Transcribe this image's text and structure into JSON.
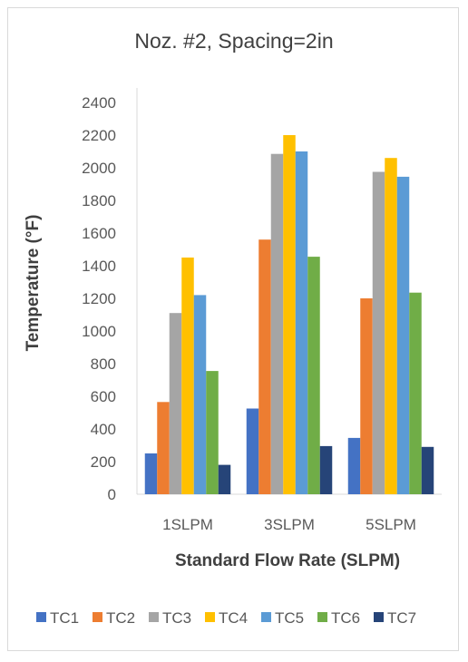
{
  "chart_data": {
    "type": "bar",
    "title": "Noz. #2, Spacing=2in",
    "xlabel": "Standard Flow Rate (SLPM)",
    "ylabel": "Temperature (°F)",
    "ylim": [
      0,
      2400
    ],
    "yticks": [
      0,
      200,
      400,
      600,
      800,
      1000,
      1200,
      1400,
      1600,
      1800,
      2000,
      2200,
      2400
    ],
    "categories": [
      "1SLPM",
      "3SLPM",
      "5SLPM"
    ],
    "grid": false,
    "legend_position": "bottom",
    "series": [
      {
        "name": "TC1",
        "color": "#4472C4",
        "values": [
          250,
          525,
          345
        ]
      },
      {
        "name": "TC2",
        "color": "#ED7D31",
        "values": [
          565,
          1560,
          1200
        ]
      },
      {
        "name": "TC3",
        "color": "#A5A5A5",
        "values": [
          1110,
          2085,
          1975
        ]
      },
      {
        "name": "TC4",
        "color": "#FFC000",
        "values": [
          1450,
          2200,
          2060
        ]
      },
      {
        "name": "TC5",
        "color": "#5B9BD5",
        "values": [
          1220,
          2100,
          1945
        ]
      },
      {
        "name": "TC6",
        "color": "#70AD47",
        "values": [
          755,
          1455,
          1235
        ]
      },
      {
        "name": "TC7",
        "color": "#264478",
        "values": [
          180,
          295,
          290
        ]
      }
    ]
  }
}
